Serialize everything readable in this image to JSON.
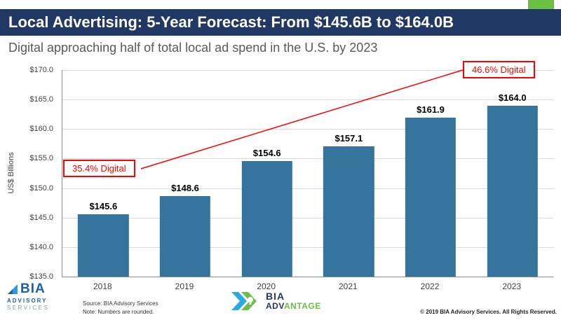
{
  "header": {
    "title": "Local Advertising: 5-Year Forecast: From $145.6B to $164.0B"
  },
  "subtitle": "Digital approaching half of total local ad spend in the U.S. by 2023",
  "chart_data": {
    "type": "bar",
    "categories": [
      "2018",
      "2019",
      "2020",
      "2021",
      "2022",
      "2023"
    ],
    "values": [
      145.6,
      148.6,
      154.6,
      157.1,
      161.9,
      164.0
    ],
    "labels": [
      "$145.6",
      "$148.6",
      "$154.6",
      "$157.1",
      "$161.9",
      "$164.0"
    ],
    "title": "",
    "xlabel": "",
    "ylabel": "US$ Billions",
    "ylim": [
      135,
      170
    ],
    "ytick_step": 5,
    "yticks": [
      "$170.0",
      "$165.0",
      "$160.0",
      "$155.0",
      "$150.0",
      "$145.0",
      "$140.0",
      "$135.0"
    ],
    "bar_color": "#35749C",
    "grid": true,
    "annotations": [
      {
        "text": "35.4% Digital",
        "target": "2018"
      },
      {
        "text": "46.6% Digital",
        "target": "2023"
      }
    ]
  },
  "colors": {
    "header_bg": "#1F3864",
    "accent_green": "#6CBE45",
    "annotation_red": "#FF0000",
    "bar_blue": "#35749C"
  },
  "footer": {
    "source": "Source: BIA Advisory Services",
    "note": "Note: Numbers are rounded.",
    "copyright": "© 2019 BIA Advisory Services. All Rights Reserved.",
    "bia_logo": {
      "name": "BIA",
      "line1": "ADVISORY",
      "line2": "SERVICES"
    },
    "advantage_logo": {
      "bia": "BIA",
      "adv": "ADV",
      "antage": "ANTAGE"
    }
  }
}
